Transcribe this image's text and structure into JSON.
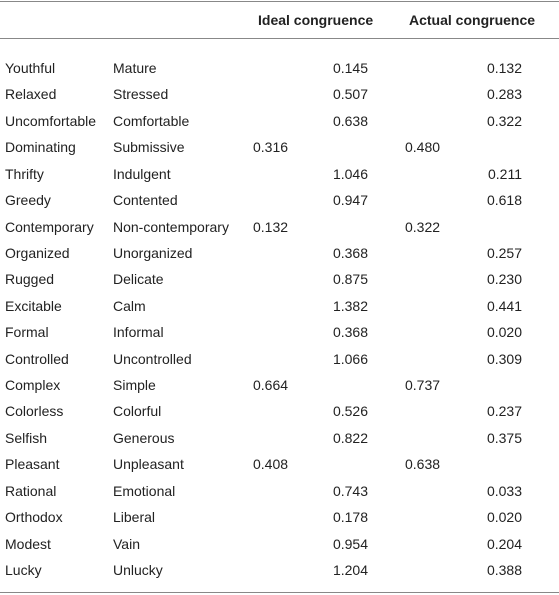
{
  "table": {
    "header": [
      "Ideal congruence",
      "Actual congruence"
    ],
    "rows": [
      [
        "Youthful",
        "Mature",
        null,
        "0.145",
        null,
        "0.132"
      ],
      [
        "Relaxed",
        "Stressed",
        null,
        "0.507",
        null,
        "0.283"
      ],
      [
        "Uncomfortable",
        "Comfortable",
        null,
        "0.638",
        null,
        "0.322"
      ],
      [
        "Dominating",
        "Submissive",
        "0.316",
        null,
        "0.480",
        null
      ],
      [
        "Thrifty",
        "Indulgent",
        null,
        "1.046",
        null,
        "0.211"
      ],
      [
        "Greedy",
        "Contented",
        null,
        "0.947",
        null,
        "0.618"
      ],
      [
        "Contemporary",
        "Non-contemporary",
        "0.132",
        null,
        "0.322",
        null
      ],
      [
        "Organized",
        "Unorganized",
        null,
        "0.368",
        null,
        "0.257"
      ],
      [
        "Rugged",
        "Delicate",
        null,
        "0.875",
        null,
        "0.230"
      ],
      [
        "Excitable",
        "Calm",
        null,
        "1.382",
        null,
        "0.441"
      ],
      [
        "Formal",
        "Informal",
        null,
        "0.368",
        null,
        "0.020"
      ],
      [
        "Controlled",
        "Uncontrolled",
        null,
        "1.066",
        null,
        "0.309"
      ],
      [
        "Complex",
        "Simple",
        "0.664",
        null,
        "0.737",
        null
      ],
      [
        "Colorless",
        "Colorful",
        null,
        "0.526",
        null,
        "0.237"
      ],
      [
        "Selfish",
        "Generous",
        null,
        "0.822",
        null,
        "0.375"
      ],
      [
        "Pleasant",
        "Unpleasant",
        "0.408",
        null,
        "0.638",
        null
      ],
      [
        "Rational",
        "Emotional",
        null,
        "0.743",
        null,
        "0.033"
      ],
      [
        "Orthodox",
        "Liberal",
        null,
        "0.178",
        null,
        "0.020"
      ],
      [
        "Modest",
        "Vain",
        null,
        "0.954",
        null,
        "0.204"
      ],
      [
        "Lucky",
        "Unlucky",
        null,
        "1.204",
        null,
        "0.388"
      ]
    ]
  }
}
